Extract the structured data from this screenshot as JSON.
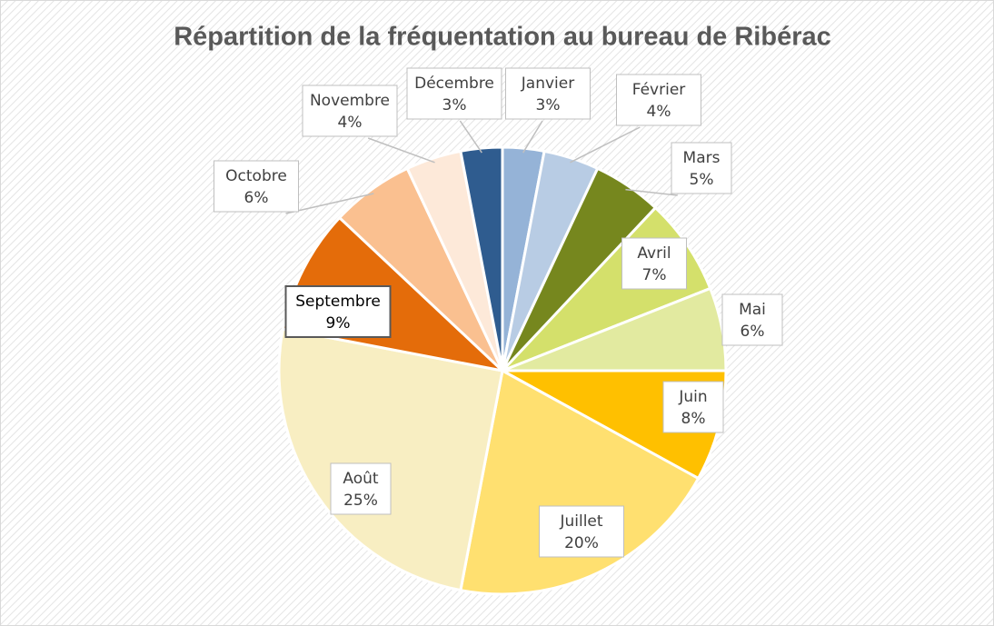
{
  "chart_data": {
    "type": "pie",
    "title": "Répartition de la fréquentation au bureau de Ribérac",
    "categories": [
      "Janvier",
      "Février",
      "Mars",
      "Avril",
      "Mai",
      "Juin",
      "Juillet",
      "Août",
      "Septembre",
      "Octobre",
      "Novembre",
      "Décembre"
    ],
    "values": [
      3,
      4,
      5,
      7,
      6,
      8,
      20,
      25,
      9,
      6,
      4,
      3
    ],
    "value_labels": [
      "3%",
      "4%",
      "5%",
      "7%",
      "6%",
      "8%",
      "20%",
      "25%",
      "9%",
      "6%",
      "4%",
      "3%"
    ],
    "colors": [
      "#95b3d7",
      "#b8cce4",
      "#76871e",
      "#d4e06b",
      "#e2eaa0",
      "#ffc000",
      "#ffe070",
      "#f8eec2",
      "#e46c0a",
      "#fac090",
      "#fde9d9",
      "#2f5c8f"
    ]
  }
}
